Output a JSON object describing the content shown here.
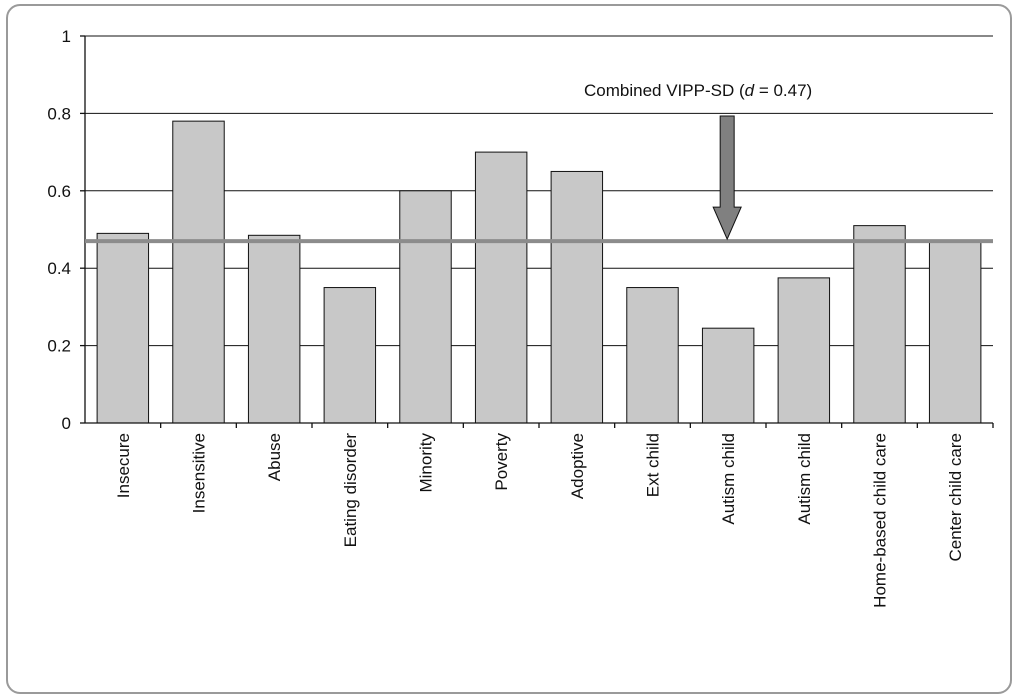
{
  "chart_data": {
    "type": "bar",
    "categories": [
      "Insecure",
      "Insensitive",
      "Abuse",
      "Eating disorder",
      "Minority",
      "Poverty",
      "Adoptive",
      "Ext child",
      "Autism child",
      "Autism child",
      "Home-based child care",
      "Center child care"
    ],
    "values": [
      0.49,
      0.78,
      0.485,
      0.35,
      0.6,
      0.7,
      0.65,
      0.35,
      0.245,
      0.375,
      0.51,
      0.47
    ],
    "ylim": [
      0,
      1
    ],
    "yticks": [
      0,
      0.2,
      0.4,
      0.6,
      0.8,
      1
    ],
    "ytick_labels": [
      "0",
      "0.2",
      "0.4",
      "0.6",
      "0.8",
      "1"
    ],
    "grid": true,
    "reference_line": {
      "value": 0.47,
      "label_prefix": "Combined VIPP-SD (",
      "label_var": "d",
      "label_suffix": " = 0.47)"
    },
    "colors": {
      "bar_fill": "#c8c8c8",
      "bar_stroke": "#111111",
      "reference_line": "#8c8c8c",
      "arrow_fill": "#808080"
    }
  }
}
